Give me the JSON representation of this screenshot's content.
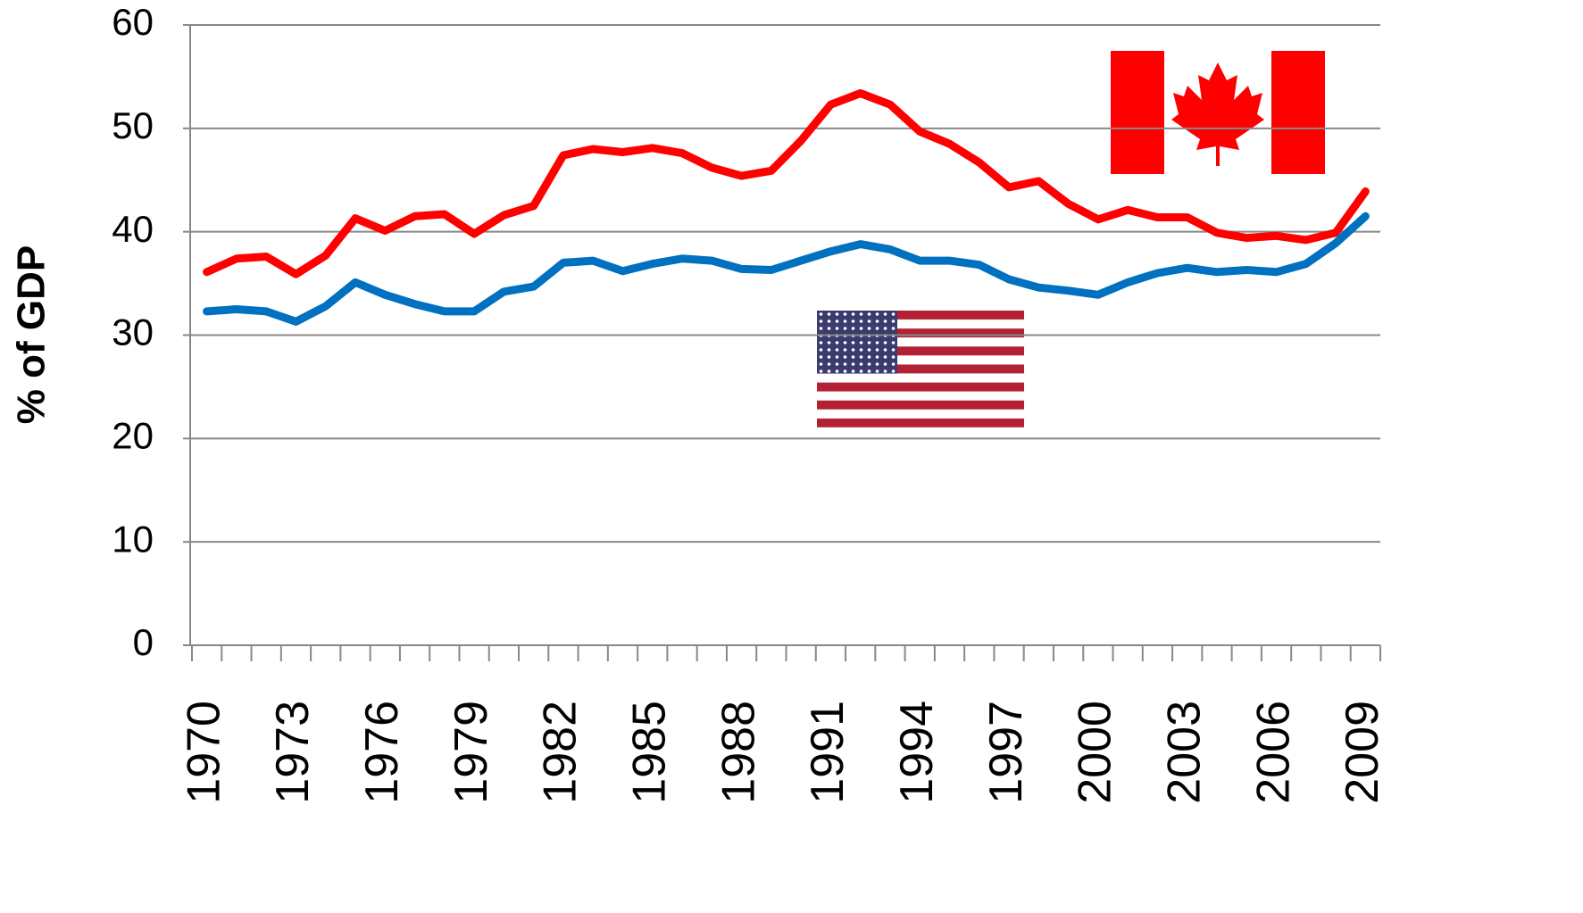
{
  "chart_data": {
    "type": "line",
    "y_label": "% of GDP",
    "categories": [
      "1970",
      null,
      null,
      "1973",
      null,
      null,
      "1976",
      null,
      null,
      "1979",
      null,
      null,
      "1982",
      null,
      null,
      "1985",
      null,
      null,
      "1988",
      null,
      null,
      "1991",
      null,
      null,
      "1994",
      null,
      null,
      "1997",
      null,
      null,
      "2000",
      null,
      null,
      "2003",
      null,
      null,
      "2006",
      null,
      null,
      "2009"
    ],
    "series": [
      {
        "color": "#ff0000",
        "values": [
          36.1,
          37.4,
          37.6,
          35.9,
          37.7,
          41.3,
          40.1,
          41.5,
          41.7,
          39.8,
          41.6,
          42.5,
          47.4,
          48.0,
          47.7,
          48.1,
          47.6,
          46.2,
          45.4,
          45.9,
          48.8,
          52.3,
          53.4,
          52.3,
          49.7,
          48.5,
          46.7,
          44.3,
          44.9,
          42.7,
          41.2,
          42.1,
          41.4,
          41.4,
          39.9,
          39.4,
          39.6,
          39.2,
          39.9,
          43.9
        ]
      },
      {
        "color": "#0070c0",
        "values": [
          32.3,
          32.5,
          32.3,
          31.3,
          32.8,
          35.1,
          33.9,
          33.0,
          32.3,
          32.3,
          34.2,
          34.7,
          37.0,
          37.2,
          36.2,
          36.9,
          37.4,
          37.2,
          36.4,
          36.3,
          37.2,
          38.1,
          38.8,
          38.3,
          37.2,
          37.2,
          36.8,
          35.4,
          34.6,
          34.3,
          33.9,
          35.1,
          36.0,
          36.5,
          36.1,
          36.3,
          36.1,
          36.9,
          38.9,
          41.5
        ]
      }
    ],
    "ylim": [
      0,
      60
    ],
    "yticks": [
      0,
      10,
      20,
      30,
      40,
      50,
      60
    ],
    "grid": true
  }
}
